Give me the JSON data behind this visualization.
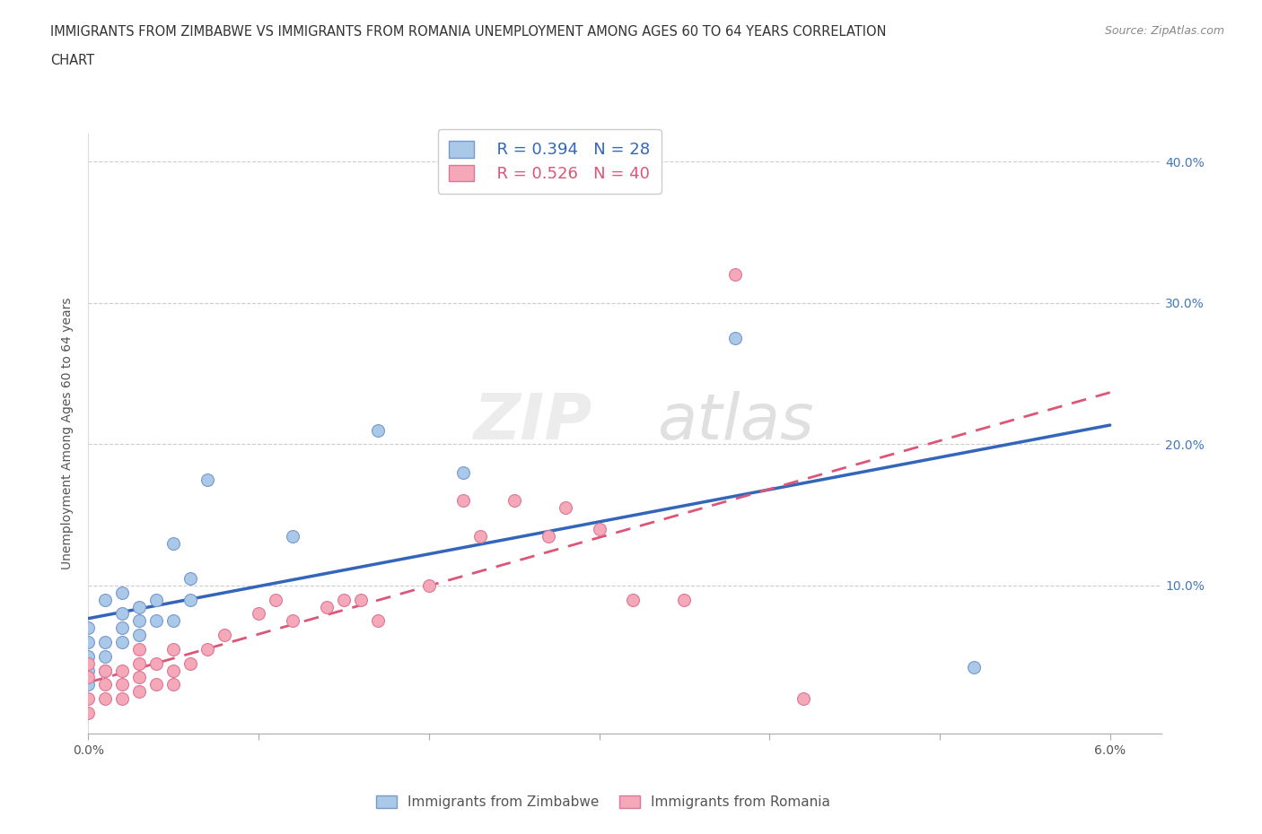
{
  "title_line1": "IMMIGRANTS FROM ZIMBABWE VS IMMIGRANTS FROM ROMANIA UNEMPLOYMENT AMONG AGES 60 TO 64 YEARS CORRELATION",
  "title_line2": "CHART",
  "source": "Source: ZipAtlas.com",
  "ylabel_label": "Unemployment Among Ages 60 to 64 years",
  "xlim": [
    0.0,
    0.063
  ],
  "ylim": [
    -0.005,
    0.42
  ],
  "xticks": [
    0.0,
    0.01,
    0.02,
    0.03,
    0.04,
    0.05,
    0.06
  ],
  "yticks": [
    0.0,
    0.1,
    0.2,
    0.3,
    0.4
  ],
  "xtick_labels": [
    "0.0%",
    "",
    "",
    "",
    "",
    "",
    "6.0%"
  ],
  "ytick_labels_right": [
    "",
    "10.0%",
    "20.0%",
    "30.0%",
    "40.0%"
  ],
  "zimbabwe_color": "#aac8e8",
  "romania_color": "#f4a8b8",
  "zimbabwe_edge": "#7799cc",
  "romania_edge": "#dd7799",
  "line_zimbabwe_color": "#3366bb",
  "line_romania_color": "#dd5577",
  "R_zimbabwe": 0.394,
  "N_zimbabwe": 28,
  "R_romania": 0.526,
  "N_romania": 40,
  "background_color": "#ffffff",
  "grid_color": "#cccccc",
  "zimbabwe_x": [
    0.0,
    0.0,
    0.0,
    0.0,
    0.0,
    0.001,
    0.001,
    0.001,
    0.001,
    0.002,
    0.002,
    0.002,
    0.002,
    0.003,
    0.003,
    0.003,
    0.004,
    0.004,
    0.005,
    0.005,
    0.006,
    0.006,
    0.007,
    0.012,
    0.017,
    0.022,
    0.038,
    0.052
  ],
  "zimbabwe_y": [
    0.03,
    0.04,
    0.05,
    0.06,
    0.07,
    0.04,
    0.05,
    0.06,
    0.09,
    0.06,
    0.07,
    0.08,
    0.095,
    0.065,
    0.075,
    0.085,
    0.075,
    0.09,
    0.075,
    0.13,
    0.09,
    0.105,
    0.175,
    0.135,
    0.21,
    0.18,
    0.275,
    0.042
  ],
  "romania_x": [
    0.0,
    0.0,
    0.0,
    0.0,
    0.001,
    0.001,
    0.001,
    0.002,
    0.002,
    0.002,
    0.003,
    0.003,
    0.003,
    0.003,
    0.004,
    0.004,
    0.005,
    0.005,
    0.005,
    0.006,
    0.007,
    0.008,
    0.01,
    0.011,
    0.012,
    0.014,
    0.015,
    0.016,
    0.017,
    0.02,
    0.022,
    0.023,
    0.025,
    0.027,
    0.028,
    0.03,
    0.032,
    0.035,
    0.038,
    0.042
  ],
  "romania_y": [
    0.01,
    0.02,
    0.035,
    0.045,
    0.02,
    0.03,
    0.04,
    0.02,
    0.03,
    0.04,
    0.025,
    0.035,
    0.045,
    0.055,
    0.03,
    0.045,
    0.03,
    0.04,
    0.055,
    0.045,
    0.055,
    0.065,
    0.08,
    0.09,
    0.075,
    0.085,
    0.09,
    0.09,
    0.075,
    0.1,
    0.16,
    0.135,
    0.16,
    0.135,
    0.155,
    0.14,
    0.09,
    0.09,
    0.32,
    0.02
  ]
}
